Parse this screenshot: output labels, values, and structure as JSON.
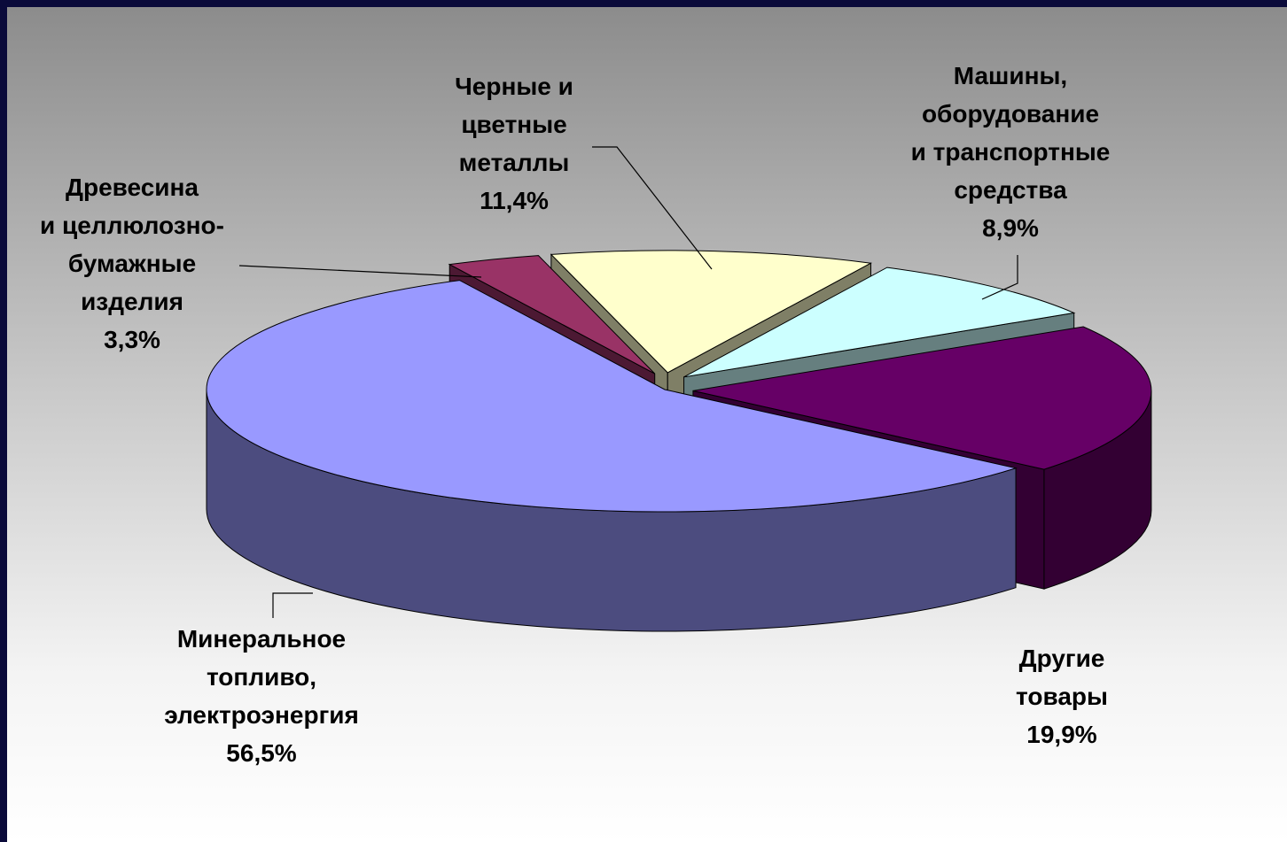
{
  "chart_data": {
    "type": "pie",
    "categories": [
      "Минеральное\nтопливо,\nэлектроэнергия",
      "Древесина\nи целлюлозно-\nбумажные\nизделия",
      "Черные и\nцветные\nметаллы",
      "Машины,\nоборудование\nи транспортные\nсредства",
      "Другие\nтовары"
    ],
    "values": [
      56.5,
      3.3,
      11.4,
      8.9,
      19.9
    ],
    "value_labels": [
      "56,5%",
      "3,3%",
      "11,4%",
      "8,9%",
      "19,9%"
    ],
    "colors": [
      "#9999ff",
      "#993366",
      "#ffffcc",
      "#ccffff",
      "#660066"
    ]
  }
}
